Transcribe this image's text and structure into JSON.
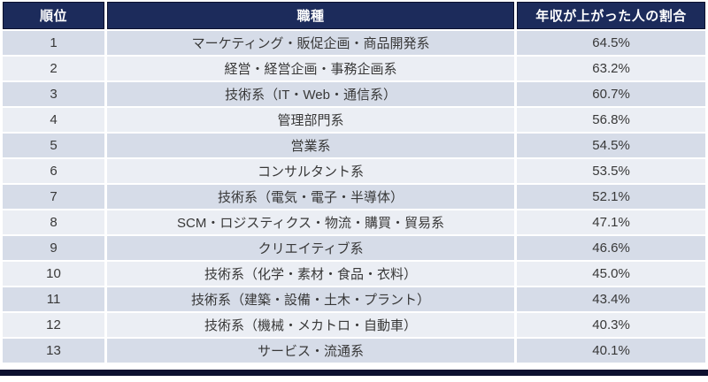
{
  "chart_data": {
    "type": "table",
    "title": "",
    "columns": [
      "順位",
      "職種",
      "年収が上がった人の割合"
    ],
    "rows": [
      [
        1,
        "マーケティング・販促企画・商品開発系",
        "64.5%"
      ],
      [
        2,
        "経営・経営企画・事務企画系",
        "63.2%"
      ],
      [
        3,
        "技術系（IT・Web・通信系）",
        "60.7%"
      ],
      [
        4,
        "管理部門系",
        "56.8%"
      ],
      [
        5,
        "営業系",
        "54.5%"
      ],
      [
        6,
        "コンサルタント系",
        "53.5%"
      ],
      [
        7,
        "技術系（電気・電子・半導体）",
        "52.1%"
      ],
      [
        8,
        "SCM・ロジスティクス・物流・購買・貿易系",
        "47.1%"
      ],
      [
        9,
        "クリエイティブ系",
        "46.6%"
      ],
      [
        10,
        "技術系（化学・素材・食品・衣料）",
        "45.0%"
      ],
      [
        11,
        "技術系（建築・設備・土木・プラント）",
        "43.4%"
      ],
      [
        12,
        "技術系（機械・メカトロ・自動車）",
        "40.3%"
      ],
      [
        13,
        "サービス・流通系",
        "40.1%"
      ]
    ]
  },
  "table": {
    "headers": {
      "rank": "順位",
      "job": "職種",
      "rate": "年収が上がった人の割合"
    },
    "rows": [
      {
        "rank": "1",
        "job": "マーケティング・販促企画・商品開発系",
        "rate": "64.5%"
      },
      {
        "rank": "2",
        "job": "経営・経営企画・事務企画系",
        "rate": "63.2%"
      },
      {
        "rank": "3",
        "job": "技術系（IT・Web・通信系）",
        "rate": "60.7%"
      },
      {
        "rank": "4",
        "job": "管理部門系",
        "rate": "56.8%"
      },
      {
        "rank": "5",
        "job": "営業系",
        "rate": "54.5%"
      },
      {
        "rank": "6",
        "job": "コンサルタント系",
        "rate": "53.5%"
      },
      {
        "rank": "7",
        "job": "技術系（電気・電子・半導体）",
        "rate": "52.1%"
      },
      {
        "rank": "8",
        "job": "SCM・ロジスティクス・物流・購買・貿易系",
        "rate": "47.1%"
      },
      {
        "rank": "9",
        "job": "クリエイティブ系",
        "rate": "46.6%"
      },
      {
        "rank": "10",
        "job": "技術系（化学・素材・食品・衣料）",
        "rate": "45.0%"
      },
      {
        "rank": "11",
        "job": "技術系（建築・設備・土木・プラント）",
        "rate": "43.4%"
      },
      {
        "rank": "12",
        "job": "技術系（機械・メカトロ・自動車）",
        "rate": "40.3%"
      },
      {
        "rank": "13",
        "job": "サービス・流通系",
        "rate": "40.1%"
      }
    ],
    "colors": {
      "header_bg": "#1C2B5B",
      "header_border": "#0B102E",
      "header_text": "#FFFFFF",
      "row_odd_bg": "#D6DCE8",
      "row_even_bg": "#EBEEF4",
      "body_text": "#383838",
      "divider": "#FFFFFF",
      "bottom_bar": "#0D1130"
    }
  }
}
